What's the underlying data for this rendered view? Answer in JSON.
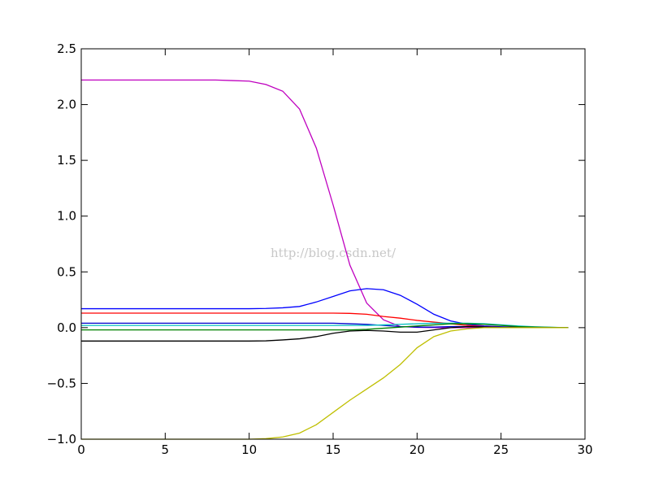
{
  "chart_data": {
    "type": "line",
    "watermark": "http://blog.csdn.net/",
    "x": [
      0,
      1,
      2,
      3,
      4,
      5,
      6,
      7,
      8,
      9,
      10,
      11,
      12,
      13,
      14,
      15,
      16,
      17,
      18,
      19,
      20,
      21,
      22,
      23,
      24,
      25,
      26,
      27,
      28,
      29
    ],
    "series": [
      {
        "color": "#bf00bf",
        "values": [
          2.22,
          2.22,
          2.22,
          2.22,
          2.22,
          2.22,
          2.22,
          2.22,
          2.22,
          2.215,
          2.21,
          2.18,
          2.12,
          1.96,
          1.61,
          1.1,
          0.56,
          0.22,
          0.07,
          0.01,
          0.003,
          0.001,
          0,
          0,
          0,
          0,
          0,
          0,
          0,
          0
        ]
      },
      {
        "color": "#0000ff",
        "values": [
          0.17,
          0.17,
          0.17,
          0.17,
          0.17,
          0.17,
          0.17,
          0.17,
          0.17,
          0.17,
          0.17,
          0.172,
          0.178,
          0.19,
          0.23,
          0.28,
          0.33,
          0.35,
          0.34,
          0.29,
          0.21,
          0.12,
          0.06,
          0.03,
          0.015,
          0.008,
          0.004,
          0.002,
          0.001,
          0
        ]
      },
      {
        "color": "#ff0000",
        "values": [
          0.13,
          0.13,
          0.13,
          0.13,
          0.13,
          0.13,
          0.13,
          0.13,
          0.13,
          0.13,
          0.13,
          0.13,
          0.13,
          0.13,
          0.13,
          0.13,
          0.128,
          0.12,
          0.1,
          0.085,
          0.065,
          0.05,
          0.035,
          0.02,
          0.01,
          0.005,
          0.003,
          0.001,
          0,
          0
        ]
      },
      {
        "color": "#0000cc",
        "values": [
          0.04,
          0.04,
          0.04,
          0.04,
          0.04,
          0.04,
          0.04,
          0.04,
          0.04,
          0.04,
          0.04,
          0.04,
          0.04,
          0.04,
          0.04,
          0.04,
          0.035,
          0.03,
          0.02,
          0.01,
          0.005,
          0.005,
          0.01,
          0.01,
          0.008,
          0.005,
          0.003,
          0.001,
          0,
          0
        ]
      },
      {
        "color": "#00bfbf",
        "values": [
          0.02,
          0.02,
          0.02,
          0.02,
          0.02,
          0.02,
          0.02,
          0.02,
          0.02,
          0.02,
          0.02,
          0.02,
          0.02,
          0.02,
          0.02,
          0.02,
          0.02,
          0.02,
          0.025,
          0.03,
          0.035,
          0.04,
          0.04,
          0.04,
          0.035,
          0.025,
          0.015,
          0.008,
          0.003,
          0
        ]
      },
      {
        "color": "#008000",
        "values": [
          -0.02,
          -0.02,
          -0.02,
          -0.02,
          -0.02,
          -0.02,
          -0.02,
          -0.02,
          -0.02,
          -0.02,
          -0.02,
          -0.02,
          -0.02,
          -0.02,
          -0.02,
          -0.02,
          -0.02,
          -0.015,
          -0.005,
          0.005,
          0.015,
          0.025,
          0.035,
          0.035,
          0.03,
          0.02,
          0.01,
          0.005,
          0.002,
          0
        ]
      },
      {
        "color": "#000000",
        "values": [
          -0.12,
          -0.12,
          -0.12,
          -0.12,
          -0.12,
          -0.12,
          -0.12,
          -0.12,
          -0.12,
          -0.12,
          -0.12,
          -0.118,
          -0.11,
          -0.1,
          -0.08,
          -0.05,
          -0.03,
          -0.025,
          -0.03,
          -0.04,
          -0.04,
          -0.02,
          0,
          0.01,
          0.005,
          0.002,
          0.001,
          0,
          0,
          0
        ]
      },
      {
        "color": "#bfbf00",
        "values": [
          -1,
          -1,
          -1,
          -1,
          -1,
          -1,
          -1,
          -1,
          -1,
          -1,
          -1,
          -0.995,
          -0.98,
          -0.945,
          -0.87,
          -0.76,
          -0.65,
          -0.55,
          -0.45,
          -0.33,
          -0.18,
          -0.08,
          -0.03,
          -0.01,
          0,
          0,
          0,
          0,
          0,
          0
        ]
      }
    ],
    "xlim": [
      0,
      30
    ],
    "xticks": [
      0,
      5,
      10,
      15,
      20,
      25,
      30
    ],
    "ylim": [
      -1,
      2.5
    ],
    "yticks": [
      {
        "value": -1,
        "label": "−1.0"
      },
      {
        "value": -0.5,
        "label": "−0.5"
      },
      {
        "value": 0,
        "label": "0.0"
      },
      0.5,
      {
        "value": 1,
        "label": "1.0"
      },
      1.5,
      {
        "value": 2,
        "label": "2.0"
      },
      2.5
    ]
  }
}
